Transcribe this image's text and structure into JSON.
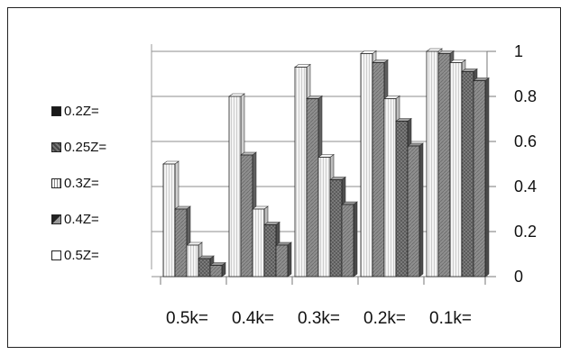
{
  "chart_data": {
    "type": "bar",
    "categories": [
      "0.5k=",
      "0.4k=",
      "0.3k=",
      "0.2k=",
      "0.1k="
    ],
    "series": [
      {
        "name": "0.5Z=",
        "values": [
          0.5,
          0.8,
          0.93,
          0.99,
          1.0
        ]
      },
      {
        "name": "0.4Z=",
        "values": [
          0.3,
          0.54,
          0.79,
          0.95,
          0.99
        ]
      },
      {
        "name": "0.3Z=",
        "values": [
          0.14,
          0.3,
          0.53,
          0.79,
          0.95
        ]
      },
      {
        "name": "0.25Z=",
        "values": [
          0.08,
          0.23,
          0.43,
          0.69,
          0.91
        ]
      },
      {
        "name": "0.2Z=",
        "values": [
          0.05,
          0.14,
          0.32,
          0.58,
          0.87
        ]
      }
    ],
    "legend": [
      {
        "label": "0.2Z=",
        "color": "#1a1a1a",
        "pattern": "solid-dark"
      },
      {
        "label": "0.25Z=",
        "color": "#555555",
        "pattern": "checker"
      },
      {
        "label": "0.3Z=",
        "color": "#dddddd",
        "pattern": "vertical-lines"
      },
      {
        "label": "0.4Z=",
        "color": "#333333",
        "pattern": "diagonal-dark"
      },
      {
        "label": "0.5Z=",
        "color": "#ffffff",
        "pattern": "plain-light"
      }
    ],
    "yticks": [
      "0",
      "0.2",
      "0.4",
      "0.6",
      "0.8",
      "1"
    ],
    "ylim": [
      0,
      1
    ],
    "grid": true,
    "legend_position": "left",
    "yaxis_side": "right",
    "perspective": "3d",
    "series_colors": [
      "#f2f2f2",
      "#a8a8a8",
      "#e4e4e4",
      "#9a9a9a",
      "#7d7d7d"
    ]
  }
}
